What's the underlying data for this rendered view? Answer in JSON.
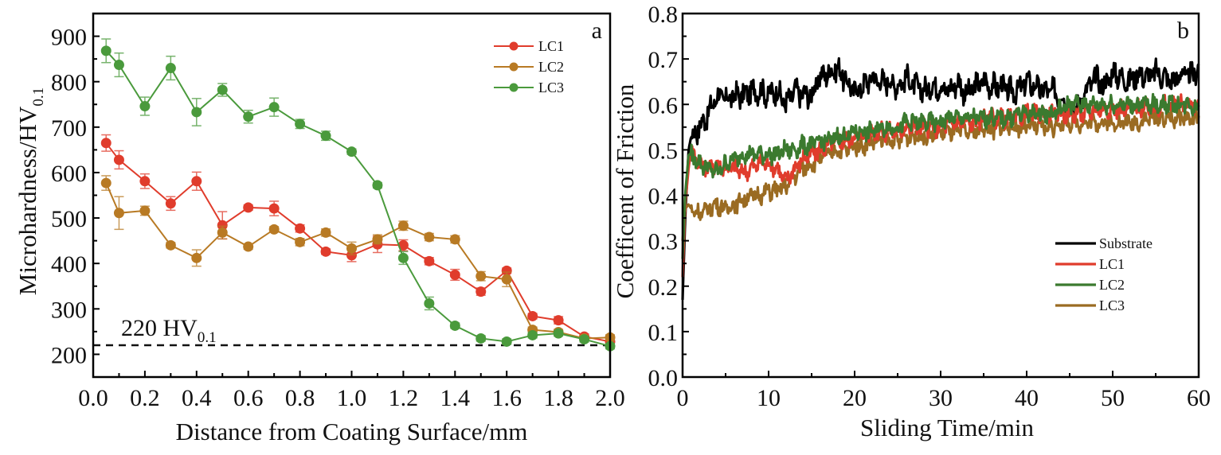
{
  "chart_data": [
    {
      "type": "line",
      "panel": "a",
      "title": "",
      "xlabel": "Distance from Coating Surface/mm",
      "ylabel": "Microhardness/HV",
      "ylabel_subscript": "0.1",
      "xlim": [
        0.0,
        2.0
      ],
      "ylim": [
        150,
        950
      ],
      "xticks": [
        "0.0",
        "0.2",
        "0.4",
        "0.6",
        "0.8",
        "1.0",
        "1.2",
        "1.4",
        "1.6",
        "1.8",
        "2.0"
      ],
      "xtick_values": [
        0.0,
        0.2,
        0.4,
        0.6,
        0.8,
        1.0,
        1.2,
        1.4,
        1.6,
        1.8,
        2.0
      ],
      "yticks": [
        "200",
        "300",
        "400",
        "500",
        "600",
        "700",
        "800",
        "900"
      ],
      "ytick_values": [
        200,
        300,
        400,
        500,
        600,
        700,
        800,
        900
      ],
      "grid": false,
      "legend_position": "top-right",
      "x": [
        0.05,
        0.1,
        0.2,
        0.3,
        0.4,
        0.5,
        0.6,
        0.7,
        0.8,
        0.9,
        1.0,
        1.1,
        1.2,
        1.3,
        1.4,
        1.5,
        1.6,
        1.7,
        1.8,
        1.9,
        2.0
      ],
      "series": [
        {
          "name": "LC1",
          "color": "#e03c2c",
          "values": [
            665,
            628,
            581,
            532,
            581,
            484,
            523,
            521,
            477,
            426,
            418,
            442,
            440,
            405,
            375,
            338,
            384,
            284,
            275,
            239,
            228
          ],
          "errors": [
            18,
            20,
            16,
            15,
            20,
            30,
            6,
            16,
            8,
            6,
            14,
            18,
            12,
            8,
            12,
            8,
            6,
            6,
            8,
            6,
            6
          ]
        },
        {
          "name": "LC2",
          "color": "#b87a24",
          "values": [
            577,
            511,
            516,
            440,
            412,
            468,
            437,
            475,
            447,
            468,
            433,
            453,
            483,
            458,
            453,
            372,
            365,
            254,
            249,
            235,
            237
          ],
          "errors": [
            16,
            36,
            10,
            6,
            18,
            14,
            6,
            6,
            8,
            8,
            14,
            10,
            10,
            8,
            8,
            10,
            16,
            6,
            6,
            6,
            6
          ]
        },
        {
          "name": "LC3",
          "color": "#4a9a3c",
          "values": [
            868,
            837,
            746,
            830,
            733,
            782,
            723,
            744,
            707,
            681,
            646,
            572,
            412,
            312,
            263,
            235,
            228,
            242,
            246,
            233,
            218
          ],
          "errors": [
            26,
            26,
            20,
            26,
            30,
            14,
            14,
            20,
            10,
            10,
            6,
            6,
            14,
            14,
            6,
            6,
            6,
            6,
            6,
            6,
            6
          ]
        }
      ],
      "annotations": [
        {
          "text": "220 HV",
          "subscript": "0.1",
          "type": "hline",
          "y": 220,
          "style": "dashed"
        }
      ]
    },
    {
      "type": "line",
      "panel": "b",
      "title": "",
      "xlabel": "Sliding Time/min",
      "ylabel": "Coefficent of Friction",
      "xlim": [
        0,
        60
      ],
      "ylim": [
        0.0,
        0.8
      ],
      "xticks": [
        "0",
        "10",
        "20",
        "30",
        "40",
        "50",
        "60"
      ],
      "xtick_values": [
        0,
        10,
        20,
        30,
        40,
        50,
        60
      ],
      "yticks": [
        "0.0",
        "0.1",
        "0.2",
        "0.3",
        "0.4",
        "0.5",
        "0.6",
        "0.7",
        "0.8"
      ],
      "ytick_values": [
        0.0,
        0.1,
        0.2,
        0.3,
        0.4,
        0.5,
        0.6,
        0.7,
        0.8
      ],
      "grid": false,
      "legend_position": "center-right",
      "x": [
        0,
        0.3,
        0.7,
        1,
        2,
        3,
        4,
        5,
        6,
        7,
        8,
        9,
        10,
        11,
        12,
        13,
        14,
        15,
        16,
        17,
        18,
        19,
        20,
        21,
        22,
        23,
        24,
        25,
        26,
        27,
        28,
        29,
        30,
        31,
        32,
        33,
        34,
        35,
        36,
        37,
        38,
        39,
        40,
        41,
        42,
        43,
        44,
        45,
        46,
        47,
        48,
        49,
        50,
        51,
        52,
        53,
        54,
        55,
        56,
        57,
        58,
        59,
        60
      ],
      "series": [
        {
          "name": "Substrate",
          "color": "#000000",
          "values": [
            0.17,
            0.35,
            0.5,
            0.53,
            0.55,
            0.58,
            0.62,
            0.61,
            0.62,
            0.62,
            0.63,
            0.63,
            0.62,
            0.63,
            0.6,
            0.63,
            0.62,
            0.62,
            0.66,
            0.67,
            0.68,
            0.65,
            0.63,
            0.64,
            0.66,
            0.65,
            0.65,
            0.64,
            0.66,
            0.64,
            0.63,
            0.64,
            0.64,
            0.63,
            0.65,
            0.62,
            0.64,
            0.65,
            0.64,
            0.64,
            0.63,
            0.63,
            0.65,
            0.64,
            0.63,
            0.63,
            0.62,
            0.59,
            0.6,
            0.63,
            0.66,
            0.64,
            0.67,
            0.66,
            0.65,
            0.67,
            0.66,
            0.67,
            0.66,
            0.65,
            0.67,
            0.66,
            0.68
          ]
        },
        {
          "name": "LC1",
          "color": "#e03c2c",
          "values": [
            0.22,
            0.38,
            0.46,
            0.5,
            0.47,
            0.46,
            0.47,
            0.46,
            0.46,
            0.45,
            0.46,
            0.47,
            0.47,
            0.46,
            0.43,
            0.46,
            0.48,
            0.49,
            0.5,
            0.51,
            0.52,
            0.52,
            0.53,
            0.53,
            0.54,
            0.54,
            0.54,
            0.54,
            0.55,
            0.55,
            0.55,
            0.55,
            0.55,
            0.56,
            0.56,
            0.56,
            0.56,
            0.57,
            0.57,
            0.57,
            0.57,
            0.57,
            0.58,
            0.58,
            0.58,
            0.58,
            0.58,
            0.58,
            0.58,
            0.58,
            0.59,
            0.59,
            0.59,
            0.59,
            0.59,
            0.59,
            0.59,
            0.59,
            0.6,
            0.6,
            0.6,
            0.6,
            0.6
          ]
        },
        {
          "name": "LC2",
          "color": "#3b7a2f",
          "values": [
            0.26,
            0.4,
            0.49,
            0.49,
            0.47,
            0.46,
            0.45,
            0.47,
            0.48,
            0.49,
            0.49,
            0.49,
            0.49,
            0.49,
            0.5,
            0.5,
            0.51,
            0.51,
            0.52,
            0.52,
            0.53,
            0.53,
            0.54,
            0.54,
            0.54,
            0.55,
            0.55,
            0.55,
            0.56,
            0.56,
            0.56,
            0.56,
            0.56,
            0.57,
            0.57,
            0.57,
            0.57,
            0.57,
            0.57,
            0.57,
            0.57,
            0.58,
            0.58,
            0.58,
            0.58,
            0.58,
            0.59,
            0.6,
            0.6,
            0.6,
            0.6,
            0.6,
            0.6,
            0.6,
            0.6,
            0.6,
            0.6,
            0.6,
            0.6,
            0.6,
            0.6,
            0.6,
            0.59
          ]
        },
        {
          "name": "LC3",
          "color": "#9a6b22",
          "values": [
            0.3,
            0.37,
            0.38,
            0.37,
            0.36,
            0.37,
            0.38,
            0.37,
            0.38,
            0.39,
            0.4,
            0.4,
            0.41,
            0.41,
            0.42,
            0.44,
            0.46,
            0.47,
            0.48,
            0.49,
            0.5,
            0.5,
            0.51,
            0.51,
            0.52,
            0.52,
            0.52,
            0.52,
            0.53,
            0.53,
            0.53,
            0.53,
            0.54,
            0.54,
            0.54,
            0.54,
            0.54,
            0.55,
            0.54,
            0.55,
            0.55,
            0.55,
            0.55,
            0.55,
            0.55,
            0.55,
            0.56,
            0.56,
            0.56,
            0.56,
            0.56,
            0.56,
            0.56,
            0.56,
            0.56,
            0.56,
            0.57,
            0.57,
            0.57,
            0.57,
            0.57,
            0.57,
            0.57
          ]
        }
      ]
    }
  ]
}
